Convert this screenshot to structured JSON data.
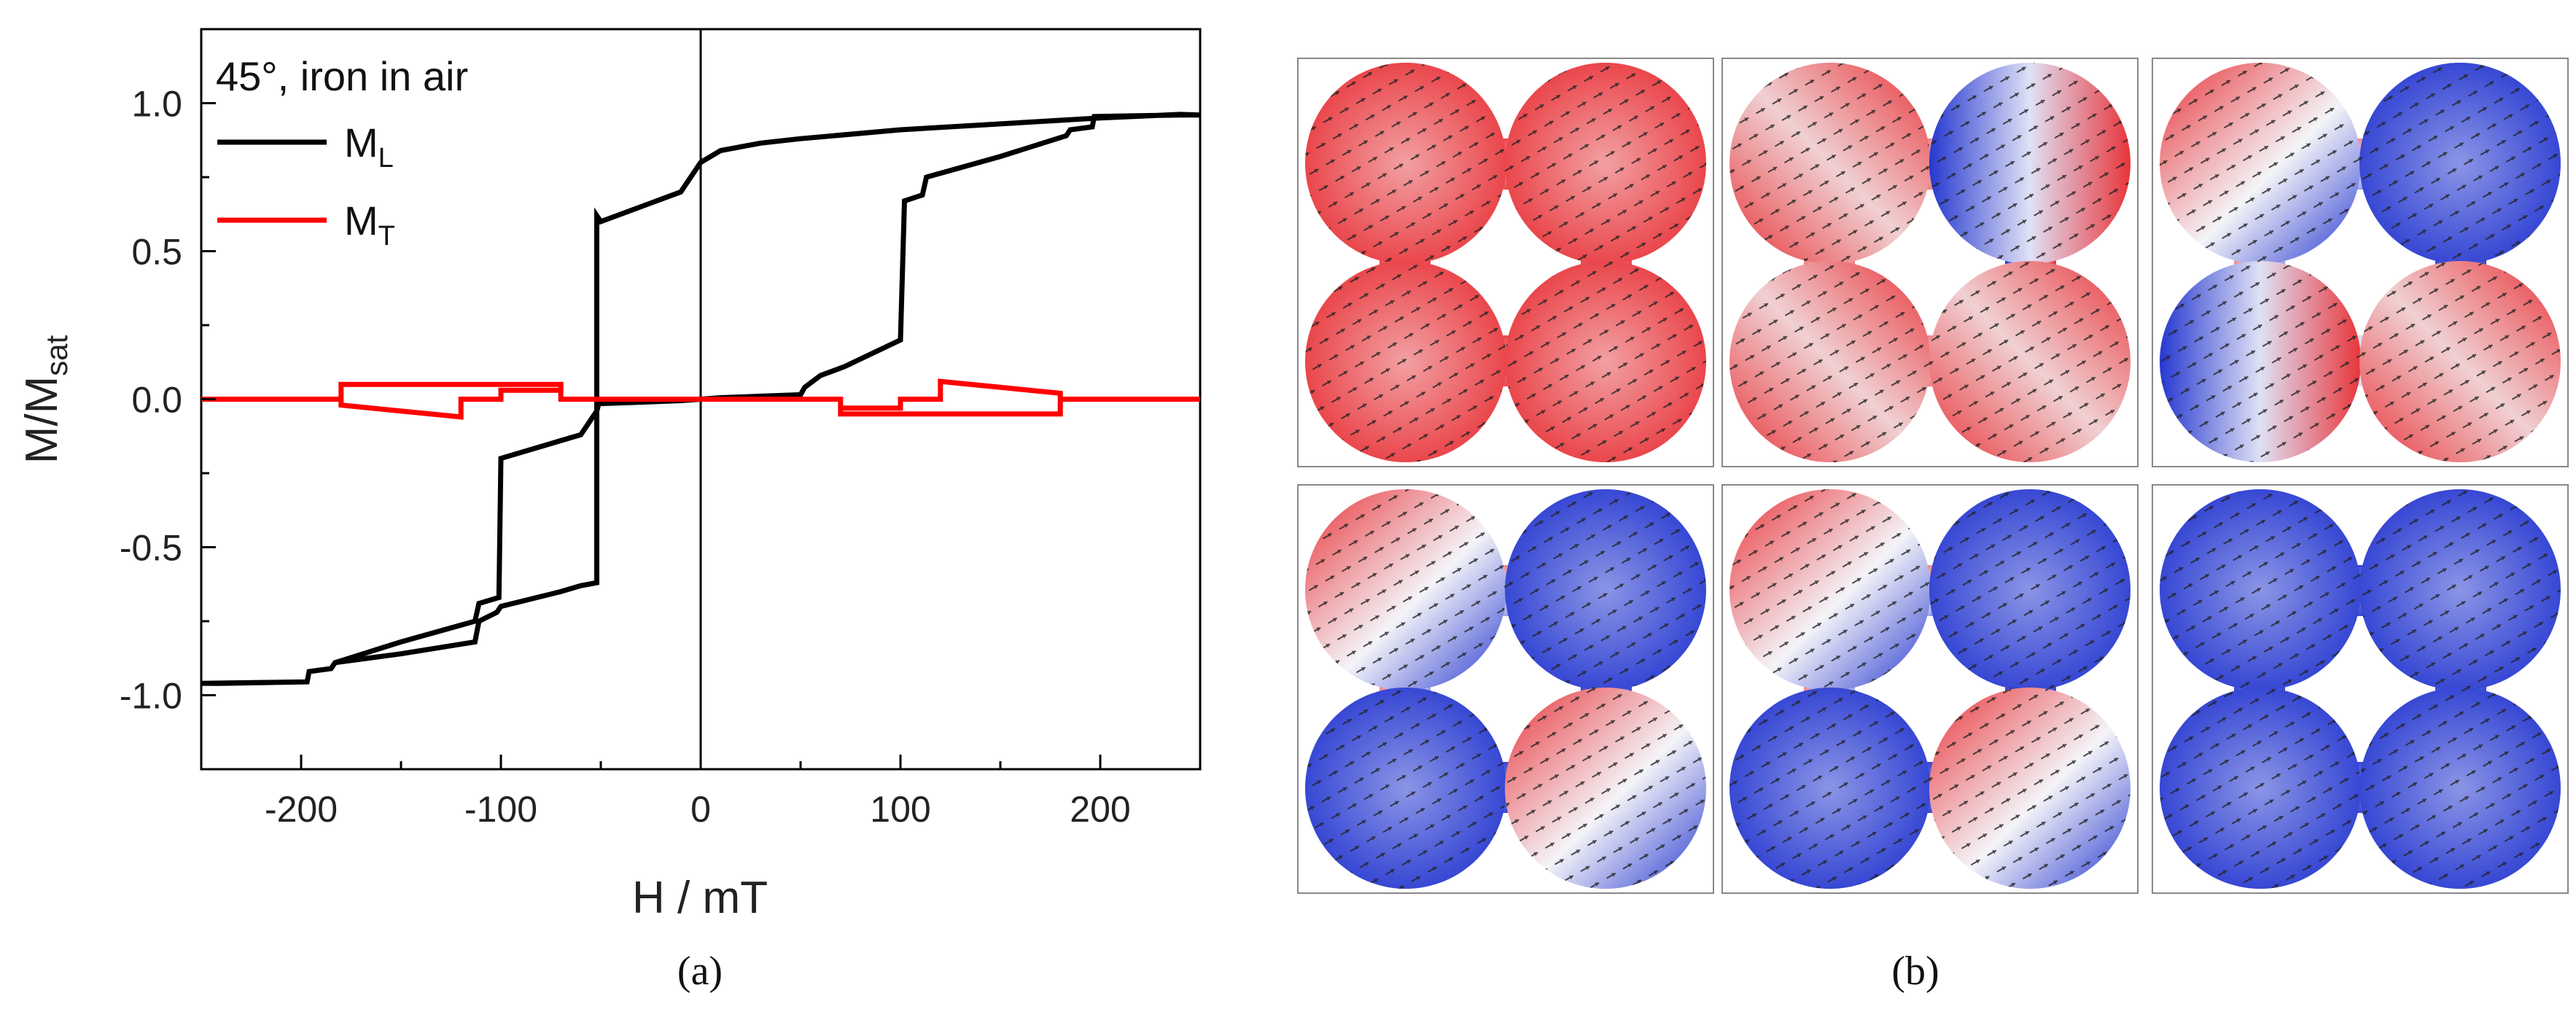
{
  "chart_data": {
    "type": "line",
    "panel_label": "(a)",
    "annotation": "45°, iron in air",
    "xlabel": "H / mT",
    "ylabel": {
      "main": "M/M",
      "sub": "sat"
    },
    "xlim": [
      -250,
      250
    ],
    "ylim": [
      -1.25,
      1.25
    ],
    "xticks": [
      -200,
      -100,
      0,
      100,
      200
    ],
    "xtick_labels": [
      "-200",
      "-100",
      "0",
      "100",
      "200"
    ],
    "yticks": [
      -1.0,
      -0.5,
      0.0,
      0.5,
      1.0
    ],
    "ytick_labels": [
      "-1.0",
      "-0.5",
      "0.0",
      "0.5",
      "1.0"
    ],
    "legend_position": "top-left",
    "series": [
      {
        "name": "M",
        "name_sub": "L",
        "color": "#000000",
        "x": [
          -250,
          -197,
          -196,
          -185,
          -183,
          -150,
          -113,
          -111,
          -101,
          -100,
          -60,
          -52,
          -51,
          -30,
          -10,
          0,
          10,
          30,
          50,
          52,
          60,
          72,
          100,
          102,
          111,
          113,
          150,
          183,
          185,
          196,
          197,
          240,
          250,
          240,
          200,
          100,
          50,
          30,
          10,
          0,
          -10,
          -30,
          -50,
          -52,
          -52,
          -60,
          -70,
          -100,
          -102,
          -111,
          -113,
          -150,
          -183,
          -185,
          -196,
          -197,
          -240,
          -250
        ],
        "y": [
          -0.96,
          -0.955,
          -0.92,
          -0.91,
          -0.89,
          -0.82,
          -0.75,
          -0.69,
          -0.67,
          -0.2,
          -0.12,
          -0.04,
          -0.015,
          -0.01,
          -0.005,
          0.0,
          0.005,
          0.01,
          0.015,
          0.04,
          0.08,
          0.11,
          0.2,
          0.67,
          0.69,
          0.75,
          0.82,
          0.89,
          0.91,
          0.92,
          0.955,
          0.96,
          0.96,
          0.962,
          0.95,
          0.91,
          0.88,
          0.865,
          0.84,
          0.8,
          0.7,
          0.65,
          0.6,
          0.62,
          -0.62,
          -0.63,
          -0.65,
          -0.7,
          -0.72,
          -0.75,
          -0.82,
          -0.86,
          -0.89,
          -0.91,
          -0.92,
          -0.955,
          -0.96,
          -0.96
        ]
      },
      {
        "name": "M",
        "name_sub": "T",
        "color": "#ff0000",
        "x": [
          -250,
          -180,
          -180,
          -70,
          -70,
          -52,
          -52,
          52,
          52,
          70,
          70,
          180,
          180,
          250,
          180,
          180,
          120,
          120,
          100,
          100,
          70,
          70,
          52,
          52,
          -52,
          -52,
          -70,
          -70,
          -100,
          -100,
          -120,
          -120,
          -180,
          -180,
          -250
        ],
        "y": [
          0.0,
          0.0,
          0.05,
          0.05,
          0.0,
          0.0,
          0.0,
          0.0,
          0.0,
          0.0,
          -0.05,
          -0.05,
          0.0,
          0.0,
          0.0,
          0.02,
          0.06,
          0.0,
          0.0,
          -0.03,
          -0.03,
          0.0,
          0.0,
          0.0,
          0.0,
          0.0,
          0.0,
          0.03,
          0.03,
          0.0,
          0.0,
          -0.06,
          -0.02,
          0.0,
          0.0
        ]
      }
    ]
  },
  "panel_b": {
    "label": "(b)",
    "tiles": [
      {
        "name": "state-1",
        "colors": [
          "#e8575b",
          "#e64d52",
          "#e6545a",
          "#e4545a"
        ]
      },
      {
        "name": "state-2",
        "colors": [
          "#e32b2b",
          "#d9d9f0",
          "#e01818",
          "#e33a3a"
        ]
      },
      {
        "name": "state-3",
        "colors": [
          "#f2c9c9",
          "#2a3ad6",
          "#d8d8ee",
          "#e13a3a"
        ]
      },
      {
        "name": "state-4",
        "colors": [
          "#3a52d8",
          "#3a52d8",
          "#3648d6",
          "#3a52d8"
        ]
      },
      {
        "name": "state-5",
        "colors": [
          "#3a52d8",
          "#3a52d8",
          "#3a52d8",
          "#3a52d8"
        ]
      },
      {
        "name": "state-6",
        "colors": [
          "#3a52d8",
          "#3a52d8",
          "#3a52d8",
          "#3a52d8"
        ]
      }
    ]
  },
  "colors": {
    "ml": "#000000",
    "mt": "#ff0000",
    "red": "#e8353a",
    "blue": "#2638d0",
    "white": "#f4f4f8"
  }
}
